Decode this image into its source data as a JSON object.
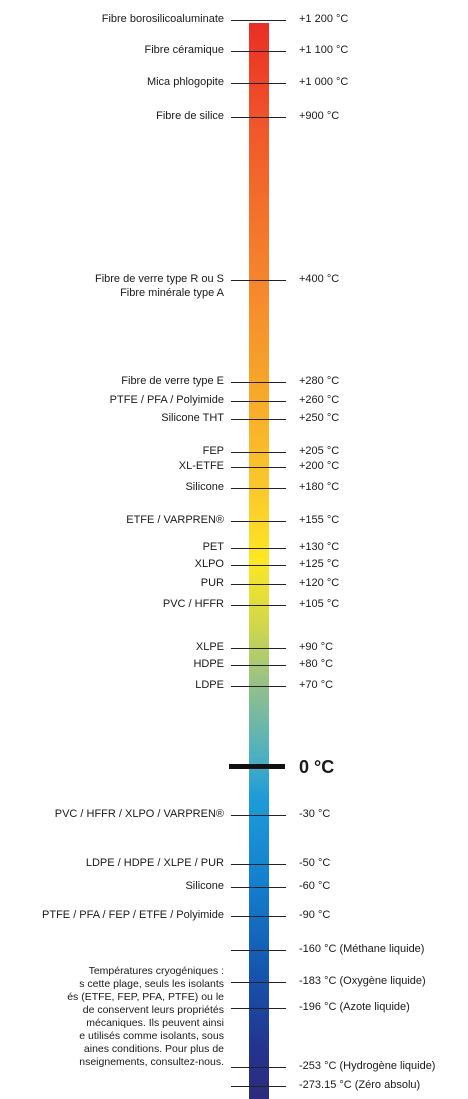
{
  "top_materials": [
    {
      "left": "Fibre borosilicoaluminate",
      "temp": "+1 200 °C"
    },
    {
      "left": "Fibre céramique",
      "temp": "+1 100 °C"
    },
    {
      "left": "Mica phlogopite",
      "temp": "+1 000 °C"
    },
    {
      "left": "Fibre de silice",
      "temp": "+900 °C"
    },
    {
      "left": "Fibre de verre  type R ou S",
      "left2": "Fibre minérale type A",
      "temp": "+400 °C"
    },
    {
      "left": "Fibre de verre type E",
      "temp": "+280 °C"
    },
    {
      "left": "PTFE / PFA / Polyimide",
      "temp": "+260 °C"
    },
    {
      "left": "Silicone THT",
      "temp": "+250 °C"
    },
    {
      "left": "FEP",
      "temp": "+205 °C"
    },
    {
      "left": "XL-ETFE",
      "temp": "+200 °C"
    },
    {
      "left": "Silicone",
      "temp": "+180 °C"
    },
    {
      "left": "ETFE / VARPREN®",
      "temp": "+155 °C"
    },
    {
      "left": "PET",
      "temp": "+130 °C"
    },
    {
      "left": "XLPO",
      "temp": "+125 °C"
    },
    {
      "left": "PUR",
      "temp": "+120 °C"
    },
    {
      "left": "PVC / HFFR",
      "temp": "+105 °C"
    },
    {
      "left": "XLPE",
      "temp": "+90 °C"
    },
    {
      "left": "HDPE",
      "temp": "+80 °C"
    },
    {
      "left": "LDPE",
      "temp": "+70 °C"
    }
  ],
  "zero_label": "0 °C",
  "bottom_materials": [
    {
      "left": "PVC / HFFR / XLPO / VARPREN®",
      "temp": "-30 °C"
    },
    {
      "left": "LDPE / HDPE / XLPE / PUR",
      "temp": "-50 °C"
    },
    {
      "left": "Silicone",
      "temp": "-60 °C"
    },
    {
      "left": "PTFE / PFA / FEP / ETFE / Polyimide",
      "temp": "-90 °C"
    },
    {
      "left": "",
      "temp": "-160 °C (Méthane liquide)"
    },
    {
      "left": "",
      "temp": "-183 °C (Oxygène liquide)"
    },
    {
      "left": "",
      "temp": "-196 °C (Azote liquide)"
    },
    {
      "left": "",
      "temp": "-253 °C (Hydrogène liquide)"
    },
    {
      "left": "",
      "temp": "-273.15 °C (Zéro absolu)"
    }
  ],
  "cryogenic_note": [
    "Températures cryogéniques :",
    "s cette plage, seuls les isolants",
    "és (ETFE, FEP, PFA, PTFE) ou le",
    "de conservent leurs propriétés",
    "mécaniques. Ils peuvent ainsi",
    "e utilisés comme isolants, sous",
    "aines conditions. Pour plus de",
    "nseignements, consultez-nous."
  ]
}
